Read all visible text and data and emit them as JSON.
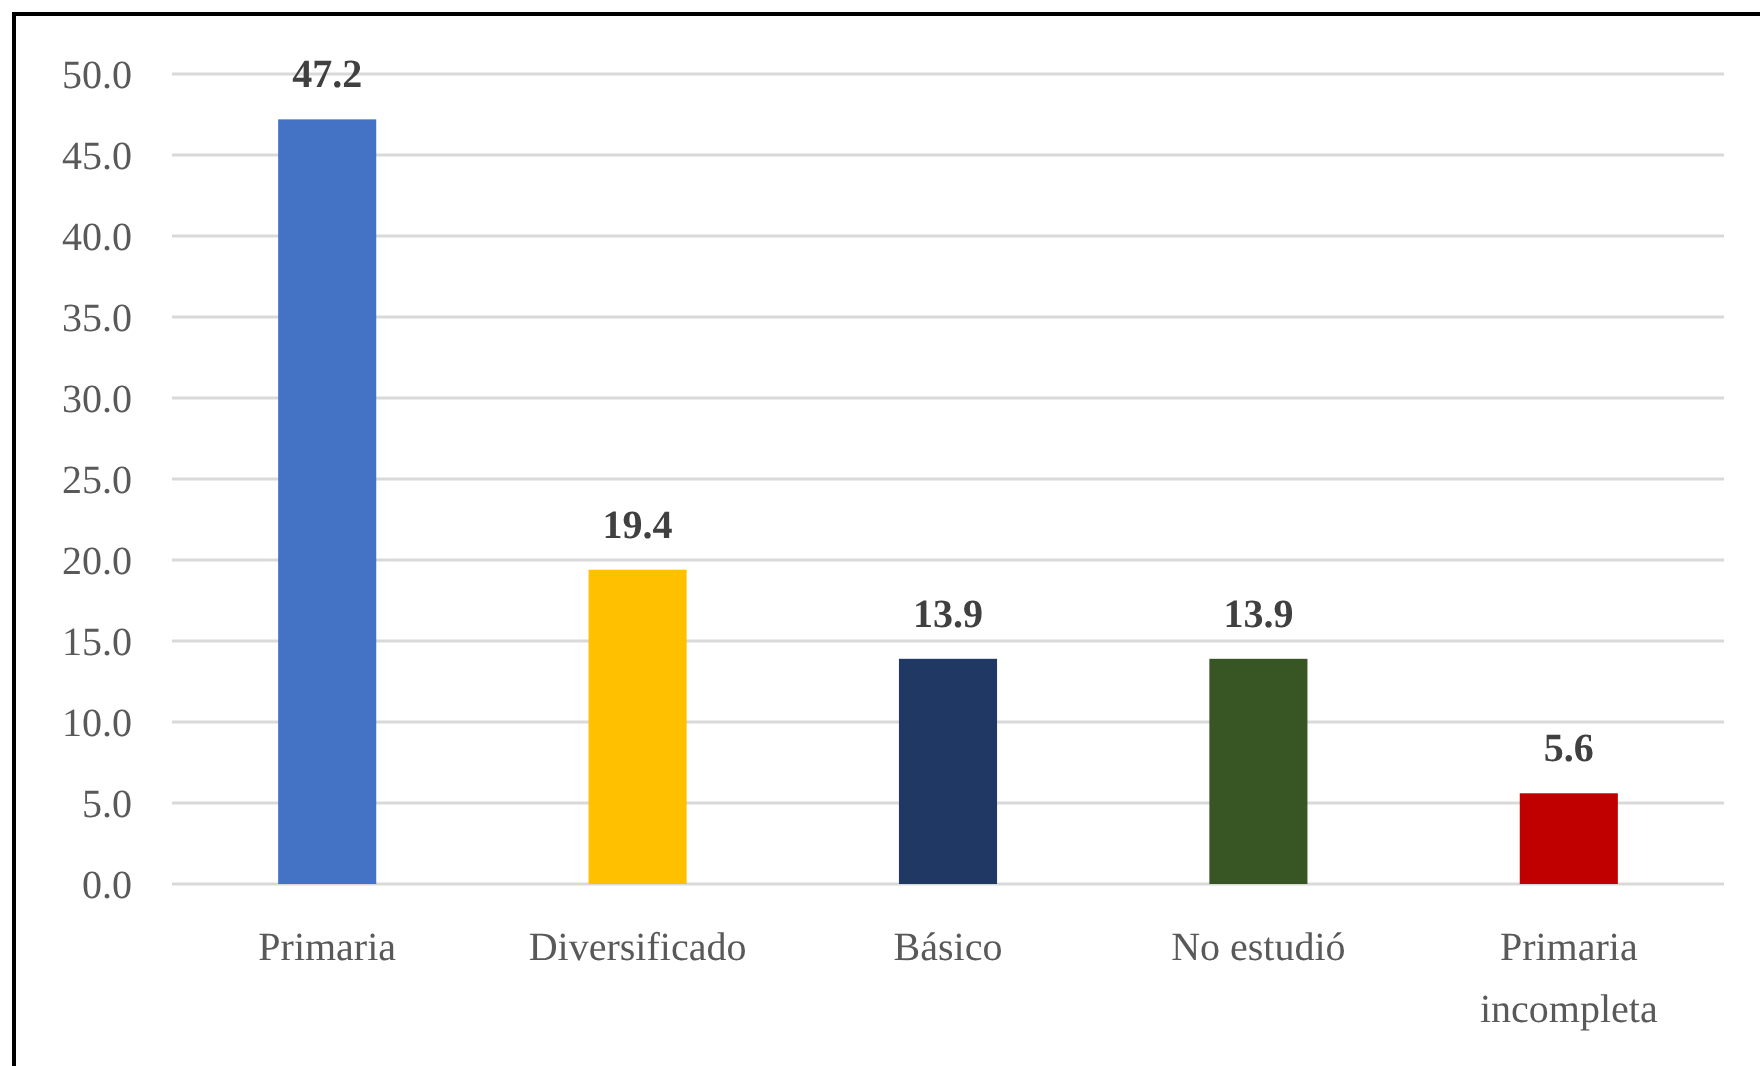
{
  "chart_data": {
    "type": "bar",
    "categories": [
      "Primaria",
      "Diversificado",
      "Básico",
      "No estudió",
      "Primaria incompleta"
    ],
    "values": [
      47.2,
      19.4,
      13.9,
      13.9,
      5.6
    ],
    "colors": [
      "#4472c4",
      "#ffc000",
      "#203864",
      "#375623",
      "#c00000"
    ],
    "ylim": [
      0,
      50
    ],
    "yticks": [
      {
        "value": 0,
        "label": "0.0"
      },
      {
        "value": 5,
        "label": "5.0"
      },
      {
        "value": 10,
        "label": "10.0"
      },
      {
        "value": 15,
        "label": "15.0"
      },
      {
        "value": 20,
        "label": "20.0"
      },
      {
        "value": 25,
        "label": "25.0"
      },
      {
        "value": 30,
        "label": "30.0"
      },
      {
        "value": 35,
        "label": "35.0"
      },
      {
        "value": 40,
        "label": "40.0"
      },
      {
        "value": 45,
        "label": "45.0"
      },
      {
        "value": 50,
        "label": "50.0"
      }
    ],
    "grid": "y",
    "data_labels": true
  }
}
